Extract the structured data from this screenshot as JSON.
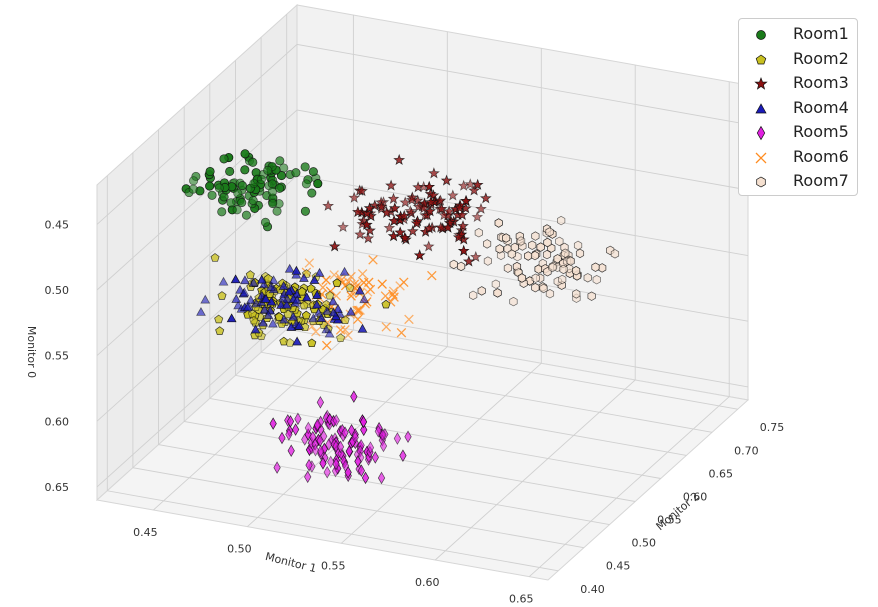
{
  "chart_data": {
    "type": "scatter3d",
    "title": "",
    "xlabel": "Monitor 1",
    "ylabel": "Monitor 2",
    "zlabel": "Monitor 0",
    "xlim": [
      0.42,
      0.66
    ],
    "ylim": [
      0.38,
      0.77
    ],
    "zlim": [
      0.42,
      0.66
    ],
    "z_inverted": true,
    "x_ticks": [
      "0.45",
      "0.50",
      "0.55",
      "0.60",
      "0.65"
    ],
    "y_ticks": [
      "0.40",
      "0.45",
      "0.50",
      "0.55",
      "0.60",
      "0.65",
      "0.70",
      "0.75"
    ],
    "z_ticks": [
      "0.45",
      "0.50",
      "0.55",
      "0.60",
      "0.65"
    ],
    "grid": true,
    "legend_position": "top-right",
    "series": [
      {
        "name": "Room1",
        "marker": "circle",
        "color": "#1a7a1a",
        "approx_points": 100,
        "center": {
          "x": 0.47,
          "y": 0.5,
          "z": 0.45
        },
        "spread": {
          "x": 0.025,
          "y": 0.04,
          "z": 0.015
        }
      },
      {
        "name": "Room2",
        "marker": "pentagon",
        "color": "#c8c020",
        "approx_points": 110,
        "center": {
          "x": 0.5,
          "y": 0.46,
          "z": 0.52
        },
        "spread": {
          "x": 0.03,
          "y": 0.03,
          "z": 0.02
        }
      },
      {
        "name": "Room3",
        "marker": "star",
        "color": "#8b1010",
        "approx_points": 110,
        "center": {
          "x": 0.53,
          "y": 0.6,
          "z": 0.49
        },
        "spread": {
          "x": 0.03,
          "y": 0.05,
          "z": 0.02
        }
      },
      {
        "name": "Room4",
        "marker": "triangle",
        "color": "#1a1ab8",
        "approx_points": 80,
        "center": {
          "x": 0.5,
          "y": 0.46,
          "z": 0.52
        },
        "spread": {
          "x": 0.03,
          "y": 0.035,
          "z": 0.02
        }
      },
      {
        "name": "Room5",
        "marker": "diamond",
        "color": "#e020e0",
        "approx_points": 110,
        "center": {
          "x": 0.53,
          "y": 0.44,
          "z": 0.61
        },
        "spread": {
          "x": 0.025,
          "y": 0.03,
          "z": 0.02
        }
      },
      {
        "name": "Room6",
        "marker": "x",
        "color": "#ff8c20",
        "approx_points": 60,
        "center": {
          "x": 0.52,
          "y": 0.52,
          "z": 0.53
        },
        "spread": {
          "x": 0.03,
          "y": 0.045,
          "z": 0.02
        }
      },
      {
        "name": "Room7",
        "marker": "hexagon",
        "color": "#f5e0d0",
        "approx_points": 90,
        "center": {
          "x": 0.57,
          "y": 0.69,
          "z": 0.55
        },
        "spread": {
          "x": 0.03,
          "y": 0.04,
          "z": 0.018
        }
      }
    ]
  }
}
